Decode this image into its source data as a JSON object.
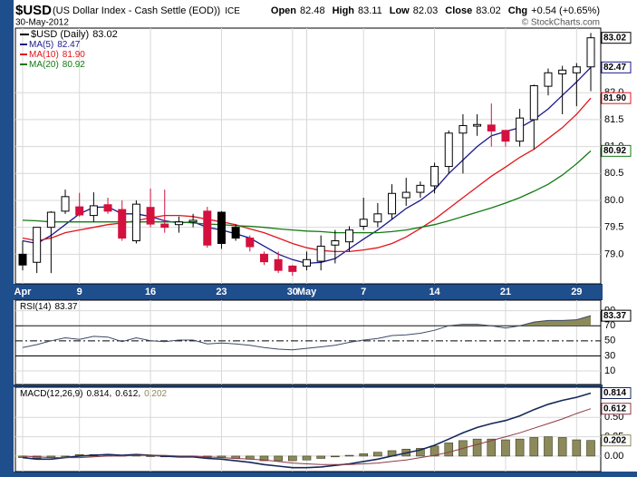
{
  "chart_data": {
    "type": "candlestick",
    "symbol": "$USD",
    "title": "(US Dollar Index - Cash Settle (EOD))",
    "exchange": "ICE",
    "date": "30-May-2012",
    "source": "© StockCharts.com",
    "quote": [
      {
        "name": "Open",
        "value": 82.48
      },
      {
        "name": "High",
        "value": 83.11
      },
      {
        "name": "Low",
        "value": 82.03
      },
      {
        "name": "Close",
        "value": 83.02
      },
      {
        "name": "Chg",
        "value": "+0.54 (+0.65%)"
      }
    ],
    "price_name": "$USD (Daily)",
    "categories": [
      "Apr",
      null,
      null,
      null,
      "9",
      null,
      null,
      null,
      null,
      "16",
      null,
      null,
      null,
      null,
      "23",
      null,
      null,
      null,
      null,
      "30",
      "May",
      null,
      null,
      null,
      "7",
      null,
      null,
      null,
      null,
      "14",
      null,
      null,
      null,
      null,
      "21",
      null,
      null,
      null,
      null,
      "29",
      null
    ],
    "open": [
      79.0,
      78.85,
      79.5,
      79.8,
      79.88,
      79.72,
      79.92,
      79.83,
      79.25,
      79.87,
      79.56,
      79.55,
      79.6,
      79.8,
      79.78,
      79.5,
      79.3,
      79.0,
      78.9,
      78.78,
      78.78,
      78.87,
      79.17,
      79.23,
      79.52,
      79.6,
      79.75,
      80.05,
      80.15,
      80.27,
      80.63,
      81.25,
      81.38,
      81.4,
      81.3,
      81.1,
      81.5,
      82.12,
      82.35,
      82.37,
      82.48
    ],
    "high": [
      79.25,
      79.5,
      79.8,
      80.2,
      80.14,
      80.15,
      80.05,
      80.0,
      80.0,
      80.22,
      80.2,
      79.7,
      79.75,
      79.88,
      79.8,
      79.55,
      79.35,
      79.05,
      79.05,
      78.8,
      79.05,
      79.35,
      79.45,
      79.52,
      80.05,
      79.95,
      80.3,
      80.42,
      80.35,
      80.7,
      81.3,
      81.6,
      81.6,
      81.8,
      81.3,
      81.7,
      82.15,
      82.45,
      82.5,
      82.55,
      83.11
    ],
    "low": [
      78.7,
      78.65,
      78.65,
      79.75,
      79.7,
      79.6,
      79.75,
      79.25,
      79.2,
      79.5,
      79.4,
      79.4,
      79.5,
      79.12,
      79.1,
      79.25,
      79.05,
      78.8,
      78.65,
      78.6,
      78.7,
      78.7,
      78.83,
      79.05,
      79.45,
      79.5,
      79.65,
      79.9,
      80.05,
      80.13,
      80.5,
      80.5,
      81.2,
      81.0,
      81.0,
      81.0,
      80.95,
      81.95,
      81.6,
      81.75,
      82.03
    ],
    "close": [
      78.8,
      79.5,
      79.78,
      80.07,
      79.73,
      79.9,
      79.8,
      79.3,
      79.93,
      79.56,
      79.5,
      79.6,
      79.63,
      79.17,
      79.2,
      79.3,
      79.14,
      78.86,
      78.7,
      78.68,
      78.9,
      79.15,
      79.25,
      79.45,
      79.65,
      79.75,
      80.13,
      80.15,
      80.28,
      80.63,
      81.25,
      81.39,
      81.41,
      81.29,
      81.1,
      81.53,
      82.13,
      82.37,
      82.42,
      82.48,
      83.02
    ],
    "series": [
      {
        "name": "MA(5)",
        "color": "#1a1a8c",
        "last_label": "82.47",
        "values": [
          79.25,
          79.2,
          79.35,
          79.55,
          79.75,
          79.87,
          79.88,
          79.75,
          79.75,
          79.7,
          79.62,
          79.58,
          79.6,
          79.5,
          79.45,
          79.38,
          79.3,
          79.15,
          79.0,
          78.9,
          78.83,
          78.85,
          78.92,
          79.1,
          79.28,
          79.45,
          79.65,
          79.85,
          80.0,
          80.2,
          80.5,
          80.75,
          81.0,
          81.2,
          81.28,
          81.35,
          81.5,
          81.7,
          81.95,
          82.2,
          82.47
        ]
      },
      {
        "name": "MA(10)",
        "color": "#e0161b",
        "last_label": "81.90",
        "values": [
          79.3,
          79.25,
          79.3,
          79.4,
          79.45,
          79.5,
          79.55,
          79.58,
          79.62,
          79.68,
          79.72,
          79.72,
          79.7,
          79.65,
          79.6,
          79.55,
          79.47,
          79.4,
          79.3,
          79.2,
          79.12,
          79.07,
          79.05,
          79.05,
          79.08,
          79.12,
          79.2,
          79.32,
          79.48,
          79.65,
          79.85,
          80.05,
          80.25,
          80.45,
          80.62,
          80.8,
          80.95,
          81.15,
          81.35,
          81.6,
          81.9
        ]
      },
      {
        "name": "MA(20)",
        "color": "#137a13",
        "last_label": "80.92",
        "values": [
          79.63,
          79.62,
          79.6,
          79.6,
          79.6,
          79.6,
          79.6,
          79.6,
          79.6,
          79.6,
          79.6,
          79.6,
          79.58,
          79.56,
          79.55,
          79.53,
          79.52,
          79.5,
          79.47,
          79.45,
          79.43,
          79.42,
          79.4,
          79.4,
          79.4,
          79.4,
          79.42,
          79.45,
          79.5,
          79.55,
          79.62,
          79.7,
          79.78,
          79.86,
          79.95,
          80.05,
          80.17,
          80.3,
          80.47,
          80.68,
          80.92
        ]
      }
    ],
    "ylim": [
      78.45,
      83.2
    ],
    "yticks": [
      {
        "value": 79,
        "label": "79.0"
      },
      79.5,
      {
        "value": 80,
        "label": "80.0"
      },
      80.5,
      {
        "value": 81,
        "label": "81.0"
      },
      81.5,
      {
        "value": 82,
        "label": "82.0"
      }
    ],
    "grid": true,
    "up_color": "#ffffff",
    "down_color": "#d4103e",
    "rsi": {
      "name": "RSI(14)",
      "color": "#3b4a66",
      "fill": "#8c8a5a",
      "values": [
        41,
        45,
        50,
        54,
        52,
        56,
        55,
        49,
        54,
        50,
        49,
        51,
        51,
        46,
        47,
        46,
        44,
        41,
        39,
        38,
        40,
        42,
        44,
        48,
        51,
        53,
        57,
        58,
        60,
        64,
        70,
        72,
        72,
        70,
        67,
        70,
        75,
        77,
        77,
        78,
        83.37
      ],
      "ylim": [
        -8,
        104
      ],
      "yticks": [
        10,
        30,
        50,
        70,
        90
      ],
      "bands": [
        30,
        70
      ],
      "midline": 50
    },
    "macd": {
      "name": "MACD(12,26,9)",
      "ylim": [
        -0.2,
        0.89
      ],
      "yticks": [
        {
          "value": 0,
          "label": "0.00"
        },
        0.25,
        {
          "value": 0.5,
          "label": "0.50"
        }
      ],
      "series": [
        {
          "color": "#16285a",
          "values": [
            -0.02,
            -0.04,
            -0.04,
            -0.02,
            0.0,
            0.01,
            0.02,
            0.01,
            0.02,
            0.01,
            0.0,
            -0.01,
            -0.01,
            -0.03,
            -0.04,
            -0.06,
            -0.08,
            -0.11,
            -0.13,
            -0.15,
            -0.15,
            -0.14,
            -0.12,
            -0.1,
            -0.07,
            -0.04,
            0.0,
            0.04,
            0.08,
            0.14,
            0.22,
            0.3,
            0.37,
            0.42,
            0.46,
            0.52,
            0.6,
            0.67,
            0.72,
            0.76,
            0.814
          ]
        },
        {
          "color": "#8c3a46",
          "values": [
            0.0,
            -0.01,
            -0.02,
            -0.02,
            -0.02,
            -0.01,
            0.0,
            0.0,
            0.01,
            0.01,
            0.01,
            0.0,
            0.0,
            -0.01,
            -0.02,
            -0.03,
            -0.04,
            -0.05,
            -0.07,
            -0.09,
            -0.1,
            -0.11,
            -0.11,
            -0.11,
            -0.1,
            -0.09,
            -0.07,
            -0.05,
            -0.02,
            0.01,
            0.05,
            0.1,
            0.15,
            0.2,
            0.25,
            0.3,
            0.36,
            0.42,
            0.48,
            0.55,
            0.612
          ]
        }
      ],
      "histogram": {
        "color": "#8c8a5a",
        "values": [
          -0.02,
          -0.03,
          -0.02,
          0.0,
          0.02,
          0.02,
          0.02,
          0.01,
          0.01,
          0.0,
          -0.01,
          -0.01,
          -0.01,
          -0.02,
          -0.02,
          -0.03,
          -0.04,
          -0.06,
          -0.06,
          -0.06,
          -0.05,
          -0.03,
          -0.01,
          0.01,
          0.03,
          0.05,
          0.07,
          0.09,
          0.1,
          0.13,
          0.17,
          0.2,
          0.22,
          0.22,
          0.21,
          0.22,
          0.24,
          0.25,
          0.24,
          0.21,
          0.202
        ]
      }
    }
  }
}
